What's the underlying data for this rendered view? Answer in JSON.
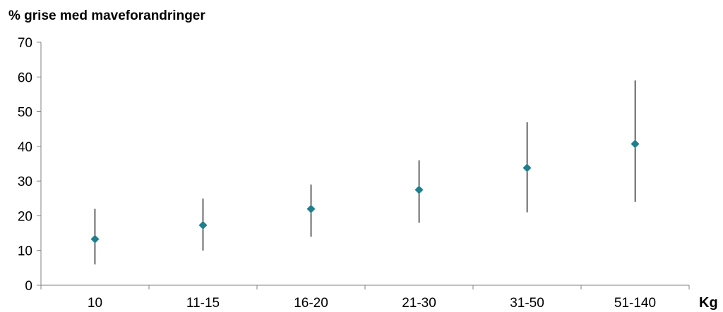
{
  "chart_data": {
    "type": "scatter",
    "title": "",
    "ylabel": "% grise med maveforandringer",
    "xlabel": "Kg",
    "categories": [
      "10",
      "11-15",
      "16-20",
      "21-30",
      "31-50",
      "51-140"
    ],
    "ylim": [
      0,
      70
    ],
    "yticks": [
      0,
      10,
      20,
      30,
      40,
      50,
      60,
      70
    ],
    "grid": false,
    "series": [
      {
        "values": [
          13.3,
          17.3,
          22.0,
          27.5,
          33.8,
          40.7
        ],
        "error_low": [
          6,
          10,
          14,
          18,
          21,
          24
        ],
        "error_high": [
          22,
          25,
          29,
          36,
          47,
          59
        ]
      }
    ],
    "colors": {
      "marker": "#1f7f8c",
      "error_bar": "#000000",
      "axis": "#808080"
    }
  }
}
